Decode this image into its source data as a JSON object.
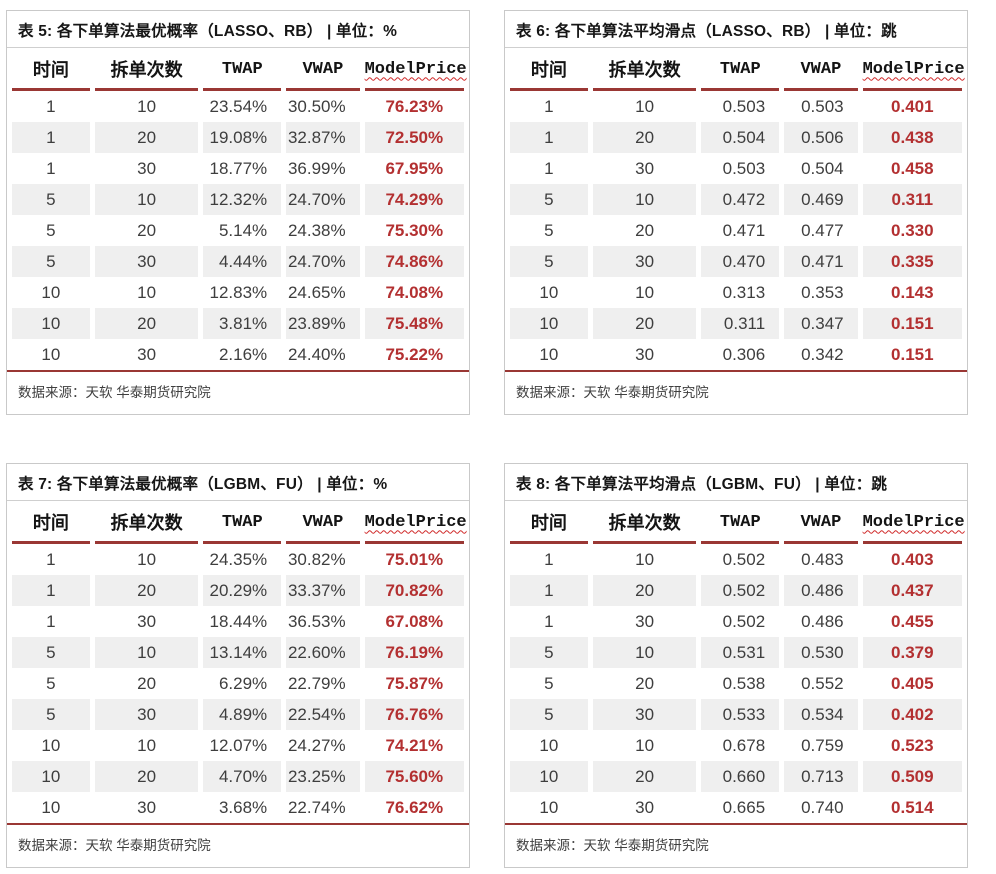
{
  "colors": {
    "accent_line": "#9a3734",
    "value_red": "#b33031",
    "row_stripe": "#efefef",
    "panel_border": "#c9c9c9"
  },
  "tables": [
    {
      "title": "表 5: 各下单算法最优概率（LASSO、RB） | 单位：%",
      "columns": [
        "时间",
        "拆单次数",
        "TWAP",
        "VWAP",
        "ModelPrice"
      ],
      "rows": [
        [
          "1",
          "10",
          "23.54%",
          "30.50%",
          "76.23%"
        ],
        [
          "1",
          "20",
          "19.08%",
          "32.87%",
          "72.50%"
        ],
        [
          "1",
          "30",
          "18.77%",
          "36.99%",
          "67.95%"
        ],
        [
          "5",
          "10",
          "12.32%",
          "24.70%",
          "74.29%"
        ],
        [
          "5",
          "20",
          "5.14%",
          "24.38%",
          "75.30%"
        ],
        [
          "5",
          "30",
          "4.44%",
          "24.70%",
          "74.86%"
        ],
        [
          "10",
          "10",
          "12.83%",
          "24.65%",
          "74.08%"
        ],
        [
          "10",
          "20",
          "3.81%",
          "23.89%",
          "75.48%"
        ],
        [
          "10",
          "30",
          "2.16%",
          "24.40%",
          "75.22%"
        ]
      ],
      "source": "数据来源：天软 华泰期货研究院"
    },
    {
      "title": "表 6: 各下单算法平均滑点（LASSO、RB） | 单位：跳",
      "columns": [
        "时间",
        "拆单次数",
        "TWAP",
        "VWAP",
        "ModelPrice"
      ],
      "rows": [
        [
          "1",
          "10",
          "0.503",
          "0.503",
          "0.401"
        ],
        [
          "1",
          "20",
          "0.504",
          "0.506",
          "0.438"
        ],
        [
          "1",
          "30",
          "0.503",
          "0.504",
          "0.458"
        ],
        [
          "5",
          "10",
          "0.472",
          "0.469",
          "0.311"
        ],
        [
          "5",
          "20",
          "0.471",
          "0.477",
          "0.330"
        ],
        [
          "5",
          "30",
          "0.470",
          "0.471",
          "0.335"
        ],
        [
          "10",
          "10",
          "0.313",
          "0.353",
          "0.143"
        ],
        [
          "10",
          "20",
          "0.311",
          "0.347",
          "0.151"
        ],
        [
          "10",
          "30",
          "0.306",
          "0.342",
          "0.151"
        ]
      ],
      "source": "数据来源：天软 华泰期货研究院"
    },
    {
      "title": "表 7: 各下单算法最优概率（LGBM、FU） | 单位：%",
      "columns": [
        "时间",
        "拆单次数",
        "TWAP",
        "VWAP",
        "ModelPrice"
      ],
      "rows": [
        [
          "1",
          "10",
          "24.35%",
          "30.82%",
          "75.01%"
        ],
        [
          "1",
          "20",
          "20.29%",
          "33.37%",
          "70.82%"
        ],
        [
          "1",
          "30",
          "18.44%",
          "36.53%",
          "67.08%"
        ],
        [
          "5",
          "10",
          "13.14%",
          "22.60%",
          "76.19%"
        ],
        [
          "5",
          "20",
          "6.29%",
          "22.79%",
          "75.87%"
        ],
        [
          "5",
          "30",
          "4.89%",
          "22.54%",
          "76.76%"
        ],
        [
          "10",
          "10",
          "12.07%",
          "24.27%",
          "74.21%"
        ],
        [
          "10",
          "20",
          "4.70%",
          "23.25%",
          "75.60%"
        ],
        [
          "10",
          "30",
          "3.68%",
          "22.74%",
          "76.62%"
        ]
      ],
      "source": "数据来源：天软 华泰期货研究院"
    },
    {
      "title": "表 8: 各下单算法平均滑点（LGBM、FU） | 单位：跳",
      "columns": [
        "时间",
        "拆单次数",
        "TWAP",
        "VWAP",
        "ModelPrice"
      ],
      "rows": [
        [
          "1",
          "10",
          "0.502",
          "0.483",
          "0.403"
        ],
        [
          "1",
          "20",
          "0.502",
          "0.486",
          "0.437"
        ],
        [
          "1",
          "30",
          "0.502",
          "0.486",
          "0.455"
        ],
        [
          "5",
          "10",
          "0.531",
          "0.530",
          "0.379"
        ],
        [
          "5",
          "20",
          "0.538",
          "0.552",
          "0.405"
        ],
        [
          "5",
          "30",
          "0.533",
          "0.534",
          "0.402"
        ],
        [
          "10",
          "10",
          "0.678",
          "0.759",
          "0.523"
        ],
        [
          "10",
          "20",
          "0.660",
          "0.713",
          "0.509"
        ],
        [
          "10",
          "30",
          "0.665",
          "0.740",
          "0.514"
        ]
      ],
      "source": "数据来源：天软 华泰期货研究院"
    }
  ]
}
